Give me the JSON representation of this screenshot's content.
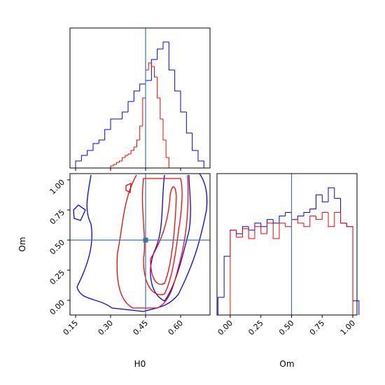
{
  "chart_data": [
    {
      "type": "histogram",
      "xlim": [
        0.126,
        0.726
      ],
      "ylim": [
        0,
        200
      ],
      "truth": 0.45,
      "truth_color": "#3b75af",
      "series": [
        {
          "name": "blue",
          "color": "#0000ff",
          "bins": [
            0.15,
            0.175,
            0.2,
            0.225,
            0.25,
            0.275,
            0.3,
            0.325,
            0.35,
            0.375,
            0.4,
            0.425,
            0.45,
            0.475,
            0.5,
            0.525,
            0.55,
            0.575,
            0.6,
            0.625,
            0.65,
            0.675,
            0.7
          ],
          "values": [
            10,
            18,
            25,
            35,
            40,
            55,
            70,
            70,
            80,
            95,
            110,
            120,
            125,
            155,
            170,
            180,
            140,
            110,
            80,
            50,
            25,
            10
          ]
        },
        {
          "name": "red",
          "color": "#ff0000",
          "bins": [
            0.3,
            0.3125,
            0.325,
            0.3375,
            0.35,
            0.3625,
            0.375,
            0.3875,
            0.4,
            0.4125,
            0.425,
            0.4375,
            0.45,
            0.4625,
            0.475,
            0.4875,
            0.5,
            0.5125,
            0.525,
            0.5375,
            0.55
          ],
          "values": [
            3,
            5,
            8,
            10,
            15,
            18,
            20,
            25,
            30,
            40,
            60,
            100,
            140,
            150,
            145,
            130,
            100,
            70,
            40,
            15
          ]
        }
      ]
    },
    {
      "type": "contour",
      "x_label": "H0",
      "y_label": "Om",
      "xlim": [
        0.126,
        0.726
      ],
      "ylim": [
        -0.122,
        1.052
      ],
      "xticks": [
        {
          "value": 0.15,
          "label": "0.15"
        },
        {
          "value": 0.3,
          "label": "0.30"
        },
        {
          "value": 0.45,
          "label": "0.45"
        },
        {
          "value": 0.6,
          "label": "0.60"
        }
      ],
      "yticks": [
        {
          "value": 0,
          "label": "0.00"
        },
        {
          "value": 0.25,
          "label": "0.25"
        },
        {
          "value": 0.5,
          "label": "0.50"
        },
        {
          "value": 0.75,
          "label": "0.75"
        },
        {
          "value": 1,
          "label": "1.00"
        }
      ],
      "truth": [
        0.45,
        0.5
      ],
      "truth_color": "#3b75af"
    },
    {
      "type": "histogram",
      "x_label": "Om",
      "xlim": [
        -0.108,
        1.034
      ],
      "ylim": [
        0,
        200
      ],
      "truth": 0.5,
      "truth_color": "#3b75af",
      "xticks": [
        {
          "value": 0,
          "label": "0.00"
        },
        {
          "value": 0.25,
          "label": "0.25"
        },
        {
          "value": 0.5,
          "label": "0.50"
        },
        {
          "value": 0.75,
          "label": "0.75"
        },
        {
          "value": 1,
          "label": "1.00"
        }
      ],
      "series": [
        {
          "name": "blue",
          "color": "#0000ff",
          "bins": [
            -0.1,
            -0.05,
            0,
            0.05,
            0.1,
            0.15,
            0.2,
            0.25,
            0.3,
            0.35,
            0.4,
            0.45,
            0.5,
            0.55,
            0.6,
            0.65,
            0.7,
            0.75,
            0.8,
            0.85,
            0.9,
            0.95,
            1.0,
            1.05
          ],
          "values": [
            25,
            83,
            120,
            115,
            125,
            120,
            130,
            125,
            135,
            130,
            140,
            145,
            135,
            140,
            145,
            150,
            170,
            160,
            180,
            165,
            130,
            125,
            20
          ]
        },
        {
          "name": "red",
          "color": "#ff0000",
          "bins": [
            0,
            0.05,
            0.1,
            0.15,
            0.2,
            0.25,
            0.3,
            0.35,
            0.4,
            0.45,
            0.5,
            0.55,
            0.6,
            0.65,
            0.7,
            0.75,
            0.8,
            0.85,
            0.9,
            0.95,
            1.0
          ],
          "values": [
            120,
            110,
            122,
            108,
            125,
            115,
            130,
            108,
            130,
            125,
            135,
            130,
            125,
            140,
            135,
            145,
            125,
            145,
            130,
            125
          ]
        }
      ]
    }
  ]
}
